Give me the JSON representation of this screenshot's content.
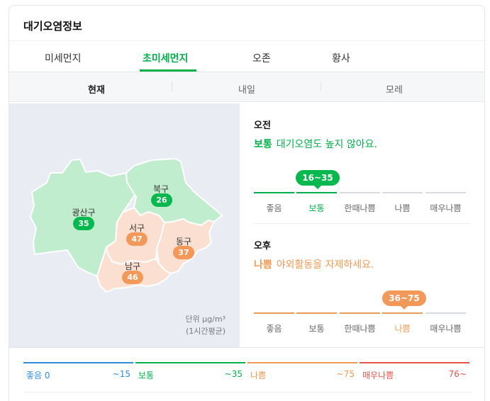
{
  "title": "대기오염정보",
  "tabs": [
    {
      "label": "미세먼지",
      "active": false
    },
    {
      "label": "초미세먼지",
      "active": true
    },
    {
      "label": "오존",
      "active": false
    },
    {
      "label": "황사",
      "active": false
    }
  ],
  "days": [
    {
      "label": "현재",
      "active": true
    },
    {
      "label": "내일",
      "active": false
    },
    {
      "label": "모레",
      "active": false
    }
  ],
  "colors": {
    "good": "#2f8fde",
    "normal": "#03b04a",
    "bad": "#f19a54",
    "very_bad": "#e8534b",
    "region_normal": "#bfedce",
    "region_bad": "#fbe0d2",
    "badge_normal": "#07b84f",
    "badge_bad": "#f2995a"
  },
  "map": {
    "districts": [
      {
        "name": "광산구",
        "value": "35",
        "grade": "normal"
      },
      {
        "name": "북구",
        "value": "26",
        "grade": "normal"
      },
      {
        "name": "서구",
        "value": "47",
        "grade": "bad"
      },
      {
        "name": "동구",
        "value": "37",
        "grade": "bad"
      },
      {
        "name": "남구",
        "value": "46",
        "grade": "bad"
      }
    ],
    "unit_line1": "단위 μg/m³",
    "unit_line2": "(1시간평균)"
  },
  "forecast": {
    "am": {
      "label": "오전",
      "grade": "보통",
      "message": "대기오염도 높지 않아요.",
      "range": "16~35",
      "active_index": 1
    },
    "pm": {
      "label": "오후",
      "grade": "나쁨",
      "message": "야외활동을 자제하세요.",
      "range": "36~75",
      "active_index": 3
    },
    "levels": [
      "좋음",
      "보통",
      "한때나쁨",
      "나쁨",
      "매우나쁨"
    ]
  },
  "legend": [
    {
      "name": "좋음 0",
      "max": "~15",
      "grade": "good"
    },
    {
      "name": "보통",
      "max": "~35",
      "grade": "normal"
    },
    {
      "name": "나쁨",
      "max": "~75",
      "grade": "bad"
    },
    {
      "name": "매우나쁨",
      "max": "76~",
      "grade": "very_bad"
    }
  ]
}
